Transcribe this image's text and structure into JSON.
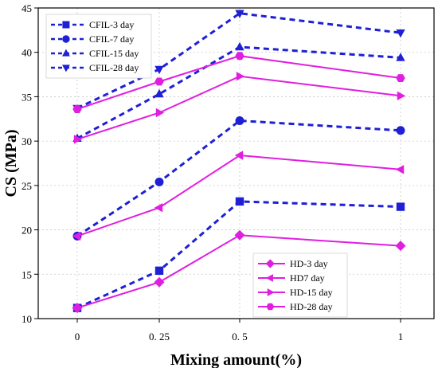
{
  "chart_data": {
    "type": "line",
    "title": "",
    "xlabel": "Mixing amount(%)",
    "ylabel": "CS (MPa)",
    "x": [
      0,
      0.25,
      0.5,
      1
    ],
    "x_tick_labels": [
      "0",
      "0. 25",
      "0. 5",
      "1"
    ],
    "ylim": [
      10,
      45
    ],
    "y_ticks": [
      10,
      15,
      20,
      25,
      30,
      35,
      40,
      45
    ],
    "grid": true,
    "legends": [
      {
        "placement": "top-left",
        "entries": [
          "CFIL-3 day",
          "CFIL-7 day",
          "CFIL-15 day",
          "CFIL-28 day"
        ]
      },
      {
        "placement": "bottom-right",
        "entries": [
          "HD-3 day",
          "HD7 day",
          "HD-15 day",
          "HD-28 day"
        ]
      }
    ],
    "series": [
      {
        "name": "CFIL-3 day",
        "values": [
          11.2,
          15.4,
          23.2,
          22.6
        ],
        "color": "#1f1fd6",
        "marker": "square",
        "dash": true
      },
      {
        "name": "CFIL-7 day",
        "values": [
          19.3,
          25.4,
          32.3,
          31.2
        ],
        "color": "#1f1fd6",
        "marker": "circle",
        "dash": true
      },
      {
        "name": "CFIL-15 day",
        "values": [
          30.3,
          35.3,
          40.6,
          39.4
        ],
        "color": "#1f1fd6",
        "marker": "triangle-up",
        "dash": true
      },
      {
        "name": "CFIL-28 day",
        "values": [
          33.7,
          38.1,
          44.4,
          42.2
        ],
        "color": "#1f1fd6",
        "marker": "triangle-down",
        "dash": true
      },
      {
        "name": "HD-3 day",
        "values": [
          11.2,
          14.1,
          19.4,
          18.2
        ],
        "color": "#e01ee0",
        "marker": "diamond",
        "dash": false
      },
      {
        "name": "HD7 day",
        "values": [
          19.3,
          22.5,
          28.4,
          26.8
        ],
        "color": "#e01ee0",
        "marker": "triangle-left",
        "dash": false
      },
      {
        "name": "HD-15 day",
        "values": [
          30.2,
          33.2,
          37.3,
          35.1
        ],
        "color": "#e01ee0",
        "marker": "triangle-right",
        "dash": false
      },
      {
        "name": "HD-28 day",
        "values": [
          33.6,
          36.7,
          39.6,
          37.1
        ],
        "color": "#e01ee0",
        "marker": "hexagon",
        "dash": false
      }
    ]
  }
}
